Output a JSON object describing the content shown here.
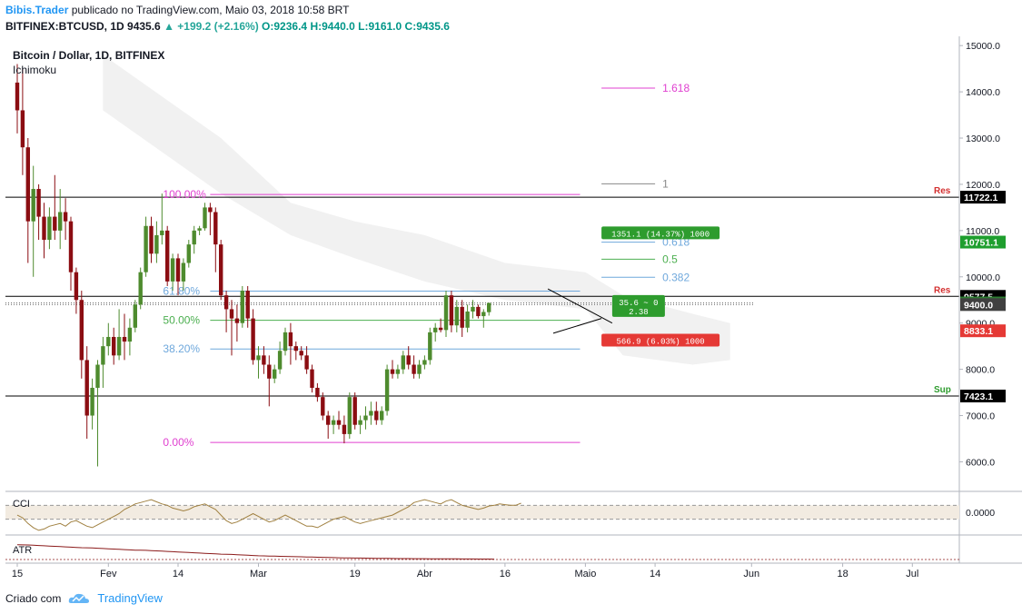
{
  "header": {
    "author": "Bibis.Trader",
    "published_text": "publicado no TradingView.com, Maio 03, 2018 10:58 BRT",
    "symbol": "BITFINEX:BTCUSD, 1D",
    "last": "9435.6",
    "change": "+199.2 (+2.16%)",
    "open": "O:9236.4",
    "high": "H:9440.0",
    "low": "L:9161.0",
    "close": "C:9435.6"
  },
  "footer": {
    "created_with": "Criado com",
    "brand": "TradingView"
  },
  "colors": {
    "bull": "#4e8b2e",
    "bear": "#8b0d12",
    "fib_magenta": "#e040d0",
    "fib_blue": "#6fa8dc",
    "fib_green": "#4caf50",
    "res_red": "#d32f2f",
    "sup_green": "#2e9c2e",
    "cci": "#a08040",
    "atr": "#8b1a1a",
    "cloud": "#efefef"
  },
  "chart_data": {
    "type": "candlestick",
    "title": "Bitcoin / Dollar, 1D, BITFINEX",
    "indicator": "Ichimoku",
    "yaxis": {
      "range": [
        5400,
        15200
      ],
      "ticks": [
        6000,
        7000,
        8000,
        9000,
        10000,
        11000,
        12000,
        13000,
        14000,
        15000
      ],
      "tick_labels": [
        "6000.0",
        "7000.0",
        "8000.0",
        "9000.0",
        "10000.0",
        "11000.0",
        "12000.0",
        "13000.0",
        "14000.0",
        "15000.0"
      ]
    },
    "xaxis": {
      "start_date": "2018-01-15",
      "tick_labels": [
        {
          "date": "2018-01-15",
          "label": "15"
        },
        {
          "date": "2018-02-01",
          "label": "Fev"
        },
        {
          "date": "2018-02-14",
          "label": "14"
        },
        {
          "date": "2018-03-01",
          "label": "Mar"
        },
        {
          "date": "2018-03-19",
          "label": "19"
        },
        {
          "date": "2018-04-01",
          "label": "Abr"
        },
        {
          "date": "2018-04-16",
          "label": "16"
        },
        {
          "date": "2018-05-01",
          "label": "Maio"
        },
        {
          "date": "2018-05-14",
          "label": "14"
        },
        {
          "date": "2018-06-01",
          "label": "Jun"
        },
        {
          "date": "2018-06-18",
          "label": "18"
        },
        {
          "date": "2018-07-01",
          "label": "Jul"
        }
      ]
    },
    "candles": [
      [
        14200,
        14600,
        13100,
        13600
      ],
      [
        13600,
        14500,
        12200,
        12800
      ],
      [
        12800,
        13000,
        10300,
        11200
      ],
      [
        11200,
        12400,
        10000,
        11900
      ],
      [
        11900,
        12000,
        10800,
        11300
      ],
      [
        11300,
        11600,
        10400,
        10800
      ],
      [
        10800,
        11500,
        10600,
        11300
      ],
      [
        11300,
        12200,
        10800,
        11000
      ],
      [
        11000,
        11900,
        10600,
        11400
      ],
      [
        11400,
        11700,
        10800,
        11200
      ],
      [
        11200,
        11300,
        9700,
        10100
      ],
      [
        10100,
        10200,
        9200,
        9500
      ],
      [
        9500,
        9700,
        7800,
        8200
      ],
      [
        8200,
        8500,
        6500,
        7000
      ],
      [
        7000,
        7800,
        6700,
        7600
      ],
      [
        7600,
        8200,
        5900,
        8100
      ],
      [
        8100,
        8700,
        7600,
        8500
      ],
      [
        8500,
        9000,
        8300,
        8700
      ],
      [
        8700,
        8900,
        8100,
        8300
      ],
      [
        8300,
        9300,
        8200,
        8700
      ],
      [
        8700,
        9200,
        8200,
        8600
      ],
      [
        8600,
        9100,
        8300,
        8900
      ],
      [
        8900,
        9500,
        8800,
        9400
      ],
      [
        9400,
        10200,
        9300,
        10100
      ],
      [
        10100,
        11300,
        10000,
        11100
      ],
      [
        11100,
        11300,
        10300,
        10500
      ],
      [
        10500,
        11200,
        10300,
        10900
      ],
      [
        10900,
        11800,
        10700,
        11000
      ],
      [
        11000,
        11100,
        9800,
        9900
      ],
      [
        9900,
        10500,
        9700,
        10400
      ],
      [
        10400,
        10500,
        9600,
        9900
      ],
      [
        9900,
        10400,
        9700,
        10300
      ],
      [
        10300,
        10800,
        10200,
        10700
      ],
      [
        10700,
        11100,
        10500,
        11000
      ],
      [
        11000,
        11100,
        10900,
        11050
      ],
      [
        11050,
        11600,
        11000,
        11500
      ],
      [
        11500,
        11600,
        10900,
        11400
      ],
      [
        11400,
        11500,
        10100,
        10700
      ],
      [
        10700,
        10800,
        9500,
        9600
      ],
      [
        9600,
        9700,
        8800,
        9300
      ],
      [
        9300,
        9500,
        8300,
        9100
      ],
      [
        9100,
        9400,
        8600,
        9000
      ],
      [
        9000,
        9800,
        8900,
        9700
      ],
      [
        9700,
        9800,
        8900,
        9100
      ],
      [
        9100,
        9300,
        8100,
        8200
      ],
      [
        8200,
        8500,
        7800,
        8300
      ],
      [
        8300,
        8500,
        7900,
        8100
      ],
      [
        8100,
        8300,
        7200,
        7800
      ],
      [
        7800,
        8100,
        7700,
        8000
      ],
      [
        8000,
        8600,
        7900,
        8400
      ],
      [
        8400,
        8900,
        8300,
        8800
      ],
      [
        8800,
        9000,
        8100,
        8500
      ],
      [
        8500,
        8600,
        8200,
        8400
      ],
      [
        8400,
        8500,
        8200,
        8300
      ],
      [
        8300,
        8500,
        7900,
        8000
      ],
      [
        8000,
        8100,
        7500,
        7600
      ],
      [
        7600,
        7700,
        7300,
        7400
      ],
      [
        7400,
        7500,
        6900,
        7000
      ],
      [
        7000,
        7100,
        6500,
        6800
      ],
      [
        6800,
        7000,
        6600,
        6900
      ],
      [
        6900,
        7100,
        6700,
        6800
      ],
      [
        6800,
        7000,
        6400,
        6600
      ],
      [
        6600,
        7500,
        6500,
        7400
      ],
      [
        7400,
        7500,
        6700,
        6800
      ],
      [
        6800,
        7000,
        6600,
        6900
      ],
      [
        6900,
        7200,
        6700,
        7000
      ],
      [
        7000,
        7300,
        6800,
        7100
      ],
      [
        7100,
        7300,
        6800,
        6900
      ],
      [
        6900,
        7200,
        6800,
        7100
      ],
      [
        7100,
        8100,
        7000,
        8000
      ],
      [
        8000,
        8200,
        7800,
        7900
      ],
      [
        7900,
        8100,
        7800,
        8000
      ],
      [
        8000,
        8400,
        7900,
        8300
      ],
      [
        8300,
        8500,
        8000,
        8100
      ],
      [
        8100,
        8300,
        7800,
        7900
      ],
      [
        7900,
        8200,
        7800,
        8100
      ],
      [
        8100,
        8300,
        8000,
        8200
      ],
      [
        8200,
        8900,
        8100,
        8800
      ],
      [
        8800,
        9000,
        8600,
        8900
      ],
      [
        8900,
        9100,
        8800,
        8850
      ],
      [
        8850,
        9700,
        8700,
        9600
      ],
      [
        9600,
        9700,
        8800,
        8950
      ],
      [
        8950,
        9500,
        8800,
        9350
      ],
      [
        9350,
        9500,
        8700,
        8900
      ],
      [
        8900,
        9400,
        8800,
        9250
      ],
      [
        9250,
        9500,
        9100,
        9350
      ],
      [
        9350,
        9400,
        9100,
        9150
      ],
      [
        9150,
        9300,
        8900,
        9240
      ],
      [
        9236,
        9440,
        9161,
        9435
      ]
    ],
    "ichimoku_cloud": [
      {
        "date": "2018-01-31",
        "upper": 14800,
        "lower": 13600
      },
      {
        "date": "2018-02-22",
        "upper": 13000,
        "lower": 11800
      },
      {
        "date": "2018-03-07",
        "upper": 11600,
        "lower": 10900
      },
      {
        "date": "2018-03-19",
        "upper": 11200,
        "lower": 10400
      },
      {
        "date": "2018-04-01",
        "upper": 10900,
        "lower": 9900
      },
      {
        "date": "2018-04-16",
        "upper": 10300,
        "lower": 9500
      },
      {
        "date": "2018-05-01",
        "upper": 10100,
        "lower": 9300
      },
      {
        "date": "2018-05-08",
        "upper": 9600,
        "lower": 8300
      },
      {
        "date": "2018-05-21",
        "upper": 9200,
        "lower": 8100
      },
      {
        "date": "2018-05-28",
        "upper": 9000,
        "lower": 8200
      }
    ],
    "horizontal_levels": [
      {
        "value": 11722.1,
        "label": "11722.1",
        "tag": "Res",
        "style": "black",
        "tag_color": "#d32f2f"
      },
      {
        "value": 9577.5,
        "label": "9577.5",
        "tag": "Res",
        "style": "black",
        "tag_color": "#d32f2f"
      },
      {
        "value": 7423.1,
        "label": "7423.1",
        "tag": "Sup",
        "style": "black",
        "tag_color": "#2e9c2e"
      }
    ],
    "fib_retracement": {
      "date_start": "2018-02-20",
      "date_end": "2018-04-30",
      "levels": [
        {
          "value": 11780,
          "label": "100.00%",
          "color": "#e040d0"
        },
        {
          "value": 9690,
          "label": "61.80%",
          "color": "#6fa8dc"
        },
        {
          "value": 9060,
          "label": "50.00%",
          "color": "#4caf50"
        },
        {
          "value": 8440,
          "label": "38.20%",
          "color": "#6fa8dc"
        },
        {
          "value": 6420,
          "label": "0.00%",
          "color": "#e040d0"
        }
      ]
    },
    "fib_extension": {
      "date_start": "2018-05-04",
      "date_end": "2018-05-14",
      "levels": [
        {
          "value": 14080,
          "label": "1.618",
          "color": "#e040d0"
        },
        {
          "value": 12010,
          "label": "1",
          "color": "#888888"
        },
        {
          "value": 10750,
          "label": "0.618",
          "color": "#6fa8dc"
        },
        {
          "value": 10380,
          "label": "0.5",
          "color": "#4caf50"
        },
        {
          "value": 9990,
          "label": "0.382",
          "color": "#6fa8dc"
        }
      ]
    },
    "triangle": {
      "upper": [
        {
          "date": "2018-04-24",
          "value": 9740
        },
        {
          "date": "2018-05-06",
          "value": 9000
        }
      ],
      "lower": [
        {
          "date": "2018-04-25",
          "value": 8780
        },
        {
          "date": "2018-05-04",
          "value": 9100
        }
      ]
    },
    "position_boxes": [
      {
        "text": "1351.1 (14.37%) 1000",
        "value": 10950,
        "date": "2018-05-04",
        "color": "#2e9c2e"
      },
      {
        "text_line1": "35.6 ~ 0",
        "text_line2": "2.38",
        "value": 9370,
        "date": "2018-05-06",
        "color": "#2e9c2e"
      },
      {
        "text": "566.9 (6.03%) 1000",
        "value": 8630,
        "date": "2018-05-04",
        "color": "#e53935"
      }
    ],
    "price_labels": [
      {
        "value": 10751.1,
        "label": "10751.1",
        "bg": "#1e9e2e"
      },
      {
        "value": 9435.6,
        "label": "9435.6",
        "bg": "#2e7d32"
      },
      {
        "value": 9400.0,
        "label": "9400.0",
        "bg": "#404040"
      },
      {
        "value": 8833.1,
        "label": "8833.1",
        "bg": "#e53935"
      }
    ],
    "cci": {
      "label": "CCI",
      "tick_label": "0.0000",
      "values": [
        -40,
        -80,
        -160,
        -220,
        -260,
        -240,
        -200,
        -180,
        -160,
        -200,
        -140,
        -120,
        -160,
        -200,
        -220,
        -180,
        -140,
        -100,
        -60,
        -20,
        40,
        80,
        120,
        140,
        160,
        180,
        150,
        120,
        100,
        60,
        40,
        20,
        40,
        80,
        100,
        120,
        80,
        40,
        -40,
        -120,
        -160,
        -140,
        -100,
        -60,
        -20,
        -60,
        -100,
        -140,
        -120,
        -80,
        -40,
        -80,
        -120,
        -160,
        -200,
        -200,
        -220,
        -180,
        -140,
        -100,
        -80,
        -60,
        -100,
        -140,
        -160,
        -140,
        -120,
        -100,
        -80,
        -60,
        -40,
        0,
        40,
        80,
        140,
        160,
        180,
        160,
        140,
        120,
        160,
        180,
        140,
        100,
        80,
        60,
        40,
        60,
        90,
        100,
        120,
        110,
        100,
        100,
        130
      ]
    },
    "atr": {
      "label": "ATR",
      "values": [
        1700,
        1690,
        1680,
        1660,
        1640,
        1620,
        1600,
        1580,
        1560,
        1540,
        1520,
        1500,
        1480,
        1470,
        1460,
        1440,
        1420,
        1400,
        1380,
        1360,
        1340,
        1320,
        1300,
        1290,
        1280,
        1260,
        1240,
        1220,
        1200,
        1180,
        1160,
        1140,
        1120,
        1100,
        1080,
        1060,
        1040,
        1020,
        1000,
        990,
        980,
        960,
        940,
        920,
        900,
        880,
        870,
        860,
        850,
        840,
        830,
        820,
        810,
        800,
        790,
        780,
        770,
        760,
        750,
        740,
        730,
        720,
        715,
        710,
        705,
        700,
        695,
        690,
        685,
        680,
        675,
        670,
        668,
        665,
        662,
        660,
        658,
        655,
        652,
        650,
        648,
        646,
        644,
        642,
        640,
        638,
        636,
        634,
        632,
        630
      ]
    }
  }
}
